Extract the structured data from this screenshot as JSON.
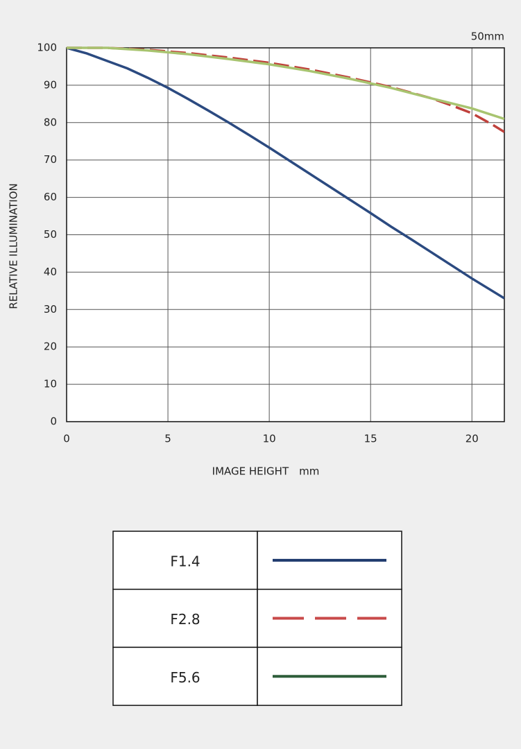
{
  "chart_data": {
    "type": "line",
    "subtitle": "50mm",
    "xlabel": "IMAGE HEIGHT mm",
    "ylabel": "RELATIVE ILLUMINATION",
    "xlim": [
      0,
      21.6
    ],
    "ylim": [
      0,
      100
    ],
    "xticks": [
      0,
      5,
      10,
      15,
      20
    ],
    "yticks": [
      0,
      10,
      20,
      30,
      40,
      50,
      60,
      70,
      80,
      90,
      100
    ],
    "grid": true,
    "series": [
      {
        "name": "F1.4",
        "color": "#2b4a80",
        "legend_color": "#1f3a6e",
        "style": "solid",
        "x": [
          0,
          1,
          2,
          3,
          4,
          5,
          6,
          7,
          8,
          9,
          10,
          11,
          12,
          13,
          14,
          15,
          16,
          17,
          18,
          19,
          20,
          21.6
        ],
        "values": [
          100,
          98.5,
          96.5,
          94.5,
          92,
          89.3,
          86.3,
          83.2,
          80,
          76.7,
          73.3,
          69.8,
          66.3,
          62.8,
          59.3,
          55.8,
          52.2,
          48.8,
          45.3,
          41.8,
          38.3,
          33
        ]
      },
      {
        "name": "F2.8",
        "color": "#c0413c",
        "legend_color": "#c84a4a",
        "style": "dashed",
        "x": [
          0,
          2,
          4,
          6,
          8,
          10,
          12,
          14,
          16,
          18,
          19,
          20,
          21,
          21.6
        ],
        "values": [
          100,
          100,
          99.5,
          98.6,
          97.4,
          96,
          94.2,
          92,
          89.5,
          86.5,
          84.6,
          82.5,
          79.5,
          77.5
        ]
      },
      {
        "name": "F5.6",
        "color": "#a8c470",
        "legend_color": "#2e5e3a",
        "style": "solid",
        "x": [
          0,
          2,
          4,
          6,
          8,
          10,
          12,
          14,
          16,
          18,
          20,
          21.6
        ],
        "values": [
          100,
          100,
          99.3,
          98.3,
          97,
          95.6,
          93.8,
          91.7,
          89.3,
          86.5,
          83.8,
          81
        ]
      }
    ]
  }
}
